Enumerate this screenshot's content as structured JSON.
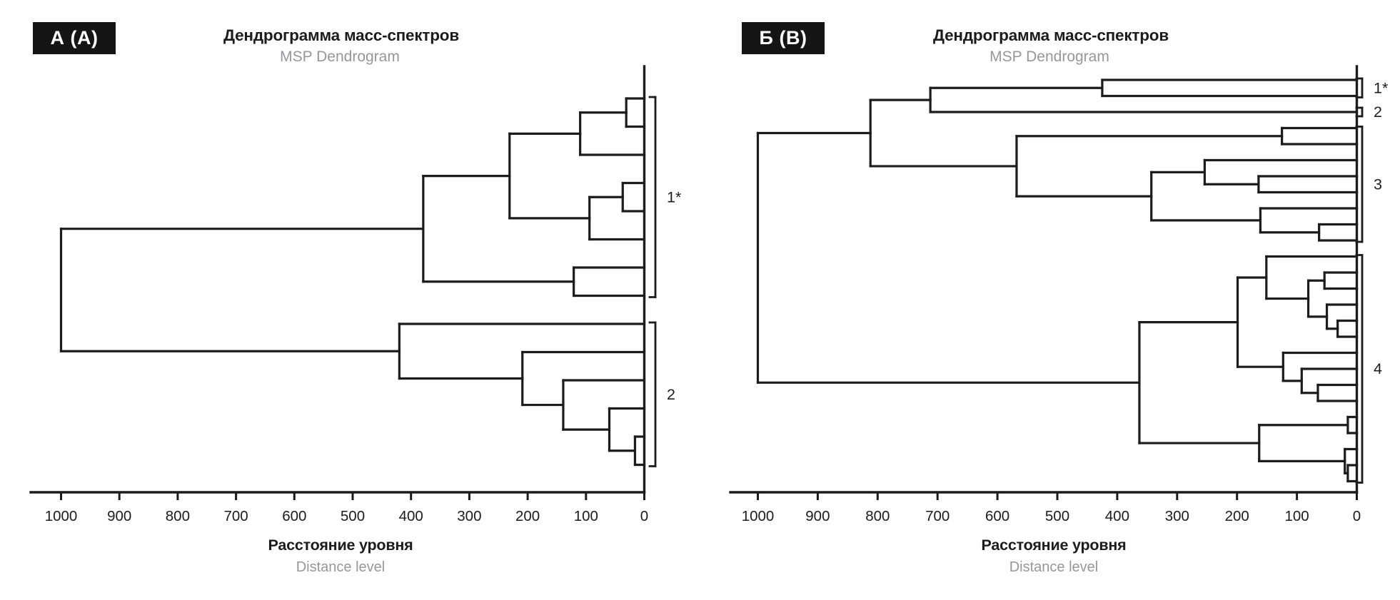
{
  "colors": {
    "ink": "#1d1b1c",
    "muted": "#98969a",
    "background": "#ffffff",
    "badge_bg": "#171415",
    "badge_text": "#ffffff"
  },
  "chart_data": [
    {
      "type": "dendrogram",
      "orientation": "horizontal-leaves-right",
      "panel_label": "А (A)",
      "title": "Дендрограмма масс-спектров",
      "subtitle": "MSP Dendrogram",
      "xlabel": "Расстояние уровня",
      "xlabel_en": "Distance level",
      "xlim": [
        1000,
        0
      ],
      "xticks": [
        1000,
        900,
        800,
        700,
        600,
        500,
        400,
        300,
        200,
        100,
        0
      ],
      "grid": false,
      "n_leaves": 14,
      "clusters": [
        {
          "label": "1*",
          "from_leaf": 0,
          "to_leaf": 7
        },
        {
          "label": "2",
          "from_leaf": 8,
          "to_leaf": 13
        }
      ],
      "tree": {
        "d": 1000,
        "children": [
          {
            "d": 379,
            "children": [
              {
                "d": 231,
                "children": [
                  {
                    "d": 110,
                    "children": [
                      {
                        "d": 31,
                        "children": [
                          "leaf",
                          "leaf"
                        ]
                      },
                      "leaf"
                    ]
                  },
                  {
                    "d": 94,
                    "children": [
                      {
                        "d": 37,
                        "children": [
                          "leaf",
                          "leaf"
                        ]
                      },
                      "leaf"
                    ]
                  }
                ]
              },
              {
                "d": 121,
                "children": [
                  "leaf",
                  "leaf"
                ]
              }
            ]
          },
          {
            "d": 420,
            "children": [
              "leaf",
              {
                "d": 209,
                "children": [
                  "leaf",
                  {
                    "d": 139,
                    "children": [
                      "leaf",
                      {
                        "d": 60,
                        "children": [
                          "leaf",
                          {
                            "d": 16,
                            "children": [
                              "leaf",
                              "leaf"
                            ]
                          }
                        ]
                      }
                    ]
                  }
                ]
              }
            ]
          }
        ]
      }
    },
    {
      "type": "dendrogram",
      "orientation": "horizontal-leaves-right",
      "panel_label": "Б (B)",
      "title": "Дендрограмма масс-спектров",
      "subtitle": "MSP Dendrogram",
      "xlabel": "Расстояние уровня",
      "xlabel_en": "Distance level",
      "xlim": [
        1000,
        0
      ],
      "xticks": [
        1000,
        900,
        800,
        700,
        600,
        500,
        400,
        300,
        200,
        100,
        0
      ],
      "grid": false,
      "n_leaves": 26,
      "clusters": [
        {
          "label": "1*",
          "from_leaf": 0,
          "to_leaf": 1
        },
        {
          "label": "2",
          "from_leaf": 2,
          "to_leaf": 2
        },
        {
          "label": "3",
          "from_leaf": 3,
          "to_leaf": 10
        },
        {
          "label": "4",
          "from_leaf": 11,
          "to_leaf": 25
        }
      ],
      "tree": {
        "d": 1000,
        "children": [
          {
            "d": 812,
            "children": [
              {
                "d": 712,
                "children": [
                  {
                    "d": 425,
                    "children": [
                      "leaf",
                      "leaf"
                    ]
                  },
                  "leaf"
                ]
              },
              {
                "d": 568,
                "children": [
                  {
                    "d": 125,
                    "children": [
                      "leaf",
                      "leaf"
                    ]
                  },
                  {
                    "d": 343,
                    "children": [
                      {
                        "d": 254,
                        "children": [
                          "leaf",
                          {
                            "d": 164,
                            "children": [
                              "leaf",
                              "leaf"
                            ]
                          }
                        ]
                      },
                      {
                        "d": 161,
                        "children": [
                          "leaf",
                          {
                            "d": 63,
                            "children": [
                              "leaf",
                              "leaf"
                            ]
                          }
                        ]
                      }
                    ]
                  }
                ]
              }
            ]
          },
          {
            "d": 363,
            "children": [
              {
                "d": 199,
                "children": [
                  {
                    "d": 151,
                    "children": [
                      "leaf",
                      {
                        "d": 81,
                        "children": [
                          {
                            "d": 54,
                            "children": [
                              "leaf",
                              "leaf"
                            ]
                          },
                          {
                            "d": 50,
                            "children": [
                              "leaf",
                              {
                                "d": 32,
                                "children": [
                                  "leaf",
                                  "leaf"
                                ]
                              }
                            ]
                          }
                        ]
                      }
                    ]
                  },
                  {
                    "d": 123,
                    "children": [
                      "leaf",
                      {
                        "d": 92,
                        "children": [
                          "leaf",
                          {
                            "d": 65,
                            "children": [
                              "leaf",
                              "leaf"
                            ]
                          }
                        ]
                      }
                    ]
                  }
                ]
              },
              {
                "d": 163,
                "children": [
                  {
                    "d": 15,
                    "children": [
                      "leaf",
                      "leaf"
                    ]
                  },
                  {
                    "d": 20,
                    "children": [
                      "leaf",
                      {
                        "d": 15,
                        "children": [
                          "leaf",
                          "leaf"
                        ]
                      }
                    ]
                  }
                ]
              }
            ]
          }
        ]
      }
    }
  ]
}
